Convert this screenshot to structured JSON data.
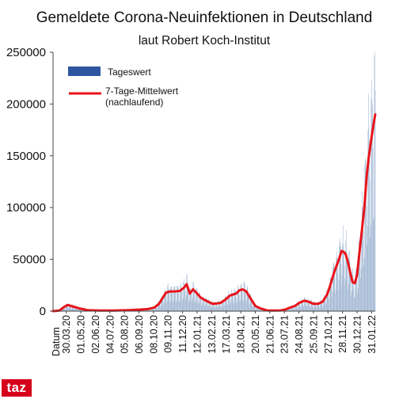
{
  "chart_data": {
    "type": "bar",
    "title": "Gemeldete Corona-Neuinfektionen in Deutschland",
    "subtitle": "laut Robert Koch-Institut",
    "xlabel": "Datum",
    "ylabel": "",
    "ylim": [
      0,
      250000
    ],
    "yticks": [
      0,
      50000,
      100000,
      150000,
      200000,
      250000
    ],
    "ytick_labels": [
      "0",
      "50000",
      "100000",
      "150000",
      "200000",
      "250000"
    ],
    "x_range": [
      "2020-03-01",
      "2022-02-08"
    ],
    "x_tick_labels": [
      "30.03.20",
      "01.05.20",
      "02.06.20",
      "04.07.20",
      "05.08.20",
      "06.09.20",
      "08.10.20",
      "09.11.20",
      "11.12.20",
      "12.01.21",
      "13.02.21",
      "17.03.21",
      "18.04.21",
      "20.05.21",
      "21.06.21",
      "23.07.21",
      "24.08.21",
      "25.09.21",
      "27.10.21",
      "28.11.21",
      "30.12.21",
      "31.01.22"
    ],
    "grid": false,
    "legend_position": "top-left",
    "colors": {
      "bars": "#a8bcd6",
      "bars_legend": "#2e56a0",
      "line": "#e8141b"
    },
    "series": [
      {
        "name": "7-Tage-Mittelwert (nachlaufend)",
        "type": "line",
        "x": [
          "2020-03-01",
          "2020-03-15",
          "2020-03-25",
          "2020-04-02",
          "2020-04-10",
          "2020-04-25",
          "2020-05-15",
          "2020-06-10",
          "2020-07-15",
          "2020-08-15",
          "2020-09-10",
          "2020-09-25",
          "2020-10-10",
          "2020-10-20",
          "2020-10-30",
          "2020-11-05",
          "2020-11-15",
          "2020-11-25",
          "2020-12-05",
          "2020-12-15",
          "2020-12-20",
          "2020-12-27",
          "2021-01-03",
          "2021-01-10",
          "2021-01-20",
          "2021-02-01",
          "2021-02-15",
          "2021-02-25",
          "2021-03-05",
          "2021-03-15",
          "2021-03-25",
          "2021-04-01",
          "2021-04-08",
          "2021-04-15",
          "2021-04-22",
          "2021-04-30",
          "2021-05-10",
          "2021-05-20",
          "2021-06-01",
          "2021-06-15",
          "2021-07-01",
          "2021-07-15",
          "2021-07-25",
          "2021-08-05",
          "2021-08-15",
          "2021-08-25",
          "2021-09-05",
          "2021-09-15",
          "2021-09-25",
          "2021-10-05",
          "2021-10-15",
          "2021-10-25",
          "2021-11-01",
          "2021-11-10",
          "2021-11-20",
          "2021-11-26",
          "2021-12-01",
          "2021-12-05",
          "2021-12-10",
          "2021-12-15",
          "2021-12-20",
          "2021-12-25",
          "2021-12-30",
          "2022-01-05",
          "2022-01-10",
          "2022-01-15",
          "2022-01-20",
          "2022-01-25",
          "2022-01-30",
          "2022-02-04",
          "2022-02-08"
        ],
        "values": [
          0,
          500,
          4000,
          6000,
          5000,
          3000,
          1000,
          500,
          500,
          1000,
          1500,
          2000,
          3500,
          7000,
          14000,
          18000,
          19000,
          19000,
          19500,
          23000,
          26000,
          17000,
          21000,
          18000,
          13000,
          10000,
          7000,
          7500,
          8000,
          11000,
          15000,
          16000,
          17000,
          20000,
          21000,
          19000,
          12000,
          5000,
          2500,
          700,
          500,
          700,
          1500,
          3500,
          5000,
          8000,
          10000,
          9000,
          7000,
          7000,
          9000,
          16000,
          25000,
          38000,
          50000,
          58000,
          57000,
          55000,
          47000,
          37000,
          28000,
          27000,
          35000,
          60000,
          80000,
          100000,
          130000,
          150000,
          165000,
          180000,
          190000
        ]
      },
      {
        "name": "Tageswert",
        "type": "bar",
        "values": []
      }
    ]
  },
  "legend": {
    "daily": "Tageswert",
    "avg_line1": "7-Tage-Mittelwert",
    "avg_line2": "(nachlaufend)"
  },
  "logo_text": "taz"
}
